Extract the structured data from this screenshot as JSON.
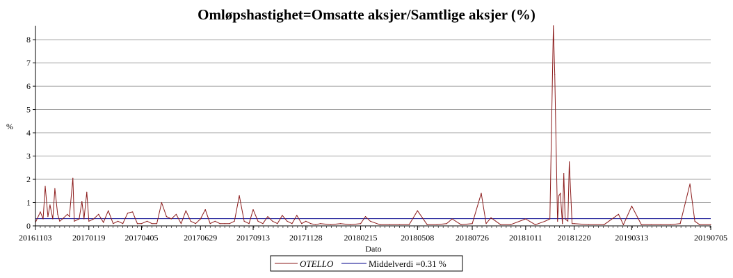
{
  "chart_data": {
    "type": "line",
    "title": "Omløpshastighet=Omsatte aksjer/Samtlige aksjer (%)",
    "xlabel": "Dato",
    "ylabel": "%",
    "x_tick_labels": [
      "20161103",
      "20170119",
      "20170405",
      "20170629",
      "20170913",
      "20171128",
      "20180215",
      "20180508",
      "20180726",
      "20181011",
      "20181220",
      "20190313",
      "20190705"
    ],
    "x_range": [
      "20161103",
      "20190705"
    ],
    "y_ticks": [
      0,
      1,
      2,
      3,
      4,
      5,
      6,
      7,
      8
    ],
    "ylim": [
      0,
      8.6
    ],
    "grid": "horizontal",
    "legend_position": "bottom-center",
    "series": [
      {
        "name": "OTELLO",
        "color": "#8b1a1a",
        "points": [
          [
            "20161103",
            0.15
          ],
          [
            "20161110",
            0.6
          ],
          [
            "20161114",
            0.3
          ],
          [
            "20161117",
            1.7
          ],
          [
            "20161121",
            0.4
          ],
          [
            "20161124",
            0.9
          ],
          [
            "20161128",
            0.3
          ],
          [
            "20161201",
            1.6
          ],
          [
            "20161205",
            0.5
          ],
          [
            "20161208",
            0.2
          ],
          [
            "20161212",
            0.3
          ],
          [
            "20161219",
            0.5
          ],
          [
            "20161222",
            0.4
          ],
          [
            "20161227",
            2.05
          ],
          [
            "20161229",
            0.2
          ],
          [
            "20170105",
            0.3
          ],
          [
            "20170109",
            1.05
          ],
          [
            "20170112",
            0.3
          ],
          [
            "20170116",
            1.45
          ],
          [
            "20170119",
            0.2
          ],
          [
            "20170126",
            0.3
          ],
          [
            "20170202",
            0.5
          ],
          [
            "20170209",
            0.15
          ],
          [
            "20170216",
            0.65
          ],
          [
            "20170223",
            0.1
          ],
          [
            "20170302",
            0.2
          ],
          [
            "20170309",
            0.1
          ],
          [
            "20170316",
            0.55
          ],
          [
            "20170323",
            0.6
          ],
          [
            "20170330",
            0.1
          ],
          [
            "20170405",
            0.1
          ],
          [
            "20170413",
            0.2
          ],
          [
            "20170420",
            0.1
          ],
          [
            "20170427",
            0.1
          ],
          [
            "20170504",
            1.0
          ],
          [
            "20170511",
            0.4
          ],
          [
            "20170518",
            0.3
          ],
          [
            "20170525",
            0.5
          ],
          [
            "20170601",
            0.1
          ],
          [
            "20170608",
            0.65
          ],
          [
            "20170615",
            0.2
          ],
          [
            "20170622",
            0.1
          ],
          [
            "20170629",
            0.3
          ],
          [
            "20170706",
            0.7
          ],
          [
            "20170713",
            0.1
          ],
          [
            "20170720",
            0.2
          ],
          [
            "20170727",
            0.1
          ],
          [
            "20170803",
            0.1
          ],
          [
            "20170810",
            0.1
          ],
          [
            "20170817",
            0.2
          ],
          [
            "20170824",
            1.3
          ],
          [
            "20170831",
            0.2
          ],
          [
            "20170907",
            0.1
          ],
          [
            "20170913",
            0.7
          ],
          [
            "20170920",
            0.2
          ],
          [
            "20170927",
            0.1
          ],
          [
            "20171004",
            0.4
          ],
          [
            "20171011",
            0.2
          ],
          [
            "20171018",
            0.1
          ],
          [
            "20171025",
            0.45
          ],
          [
            "20171101",
            0.2
          ],
          [
            "20171108",
            0.1
          ],
          [
            "20171115",
            0.45
          ],
          [
            "20171122",
            0.1
          ],
          [
            "20171128",
            0.2
          ],
          [
            "20171205",
            0.1
          ],
          [
            "20171212",
            0.05
          ],
          [
            "20171219",
            0.1
          ],
          [
            "20180103",
            0.05
          ],
          [
            "20180117",
            0.1
          ],
          [
            "20180131",
            0.05
          ],
          [
            "20180215",
            0.1
          ],
          [
            "20180222",
            0.4
          ],
          [
            "20180301",
            0.2
          ],
          [
            "20180315",
            0.05
          ],
          [
            "20180329",
            0.05
          ],
          [
            "20180412",
            0.05
          ],
          [
            "20180426",
            0.05
          ],
          [
            "20180508",
            0.65
          ],
          [
            "20180522",
            0.05
          ],
          [
            "20180605",
            0.05
          ],
          [
            "20180619",
            0.1
          ],
          [
            "20180627",
            0.3
          ],
          [
            "20180710",
            0.05
          ],
          [
            "20180726",
            0.1
          ],
          [
            "20180808",
            1.4
          ],
          [
            "20180815",
            0.1
          ],
          [
            "20180822",
            0.35
          ],
          [
            "20180905",
            0.05
          ],
          [
            "20180919",
            0.05
          ],
          [
            "20181011",
            0.3
          ],
          [
            "20181025",
            0.05
          ],
          [
            "20181108",
            0.2
          ],
          [
            "20181115",
            0.3
          ],
          [
            "20181120",
            8.6
          ],
          [
            "20181122",
            6.5
          ],
          [
            "20181126",
            0.2
          ],
          [
            "20181128",
            1.3
          ],
          [
            "20181130",
            1.4
          ],
          [
            "20181203",
            0.1
          ],
          [
            "20181205",
            2.25
          ],
          [
            "20181207",
            0.3
          ],
          [
            "20181211",
            0.2
          ],
          [
            "20181213",
            2.75
          ],
          [
            "20181217",
            0.1
          ],
          [
            "20181220",
            0.1
          ],
          [
            "20190110",
            0.05
          ],
          [
            "20190201",
            0.05
          ],
          [
            "20190222",
            0.5
          ],
          [
            "20190301",
            0.05
          ],
          [
            "20190313",
            0.85
          ],
          [
            "20190327",
            0.05
          ],
          [
            "20190410",
            0.05
          ],
          [
            "20190424",
            0.05
          ],
          [
            "20190508",
            0.05
          ],
          [
            "20190522",
            0.1
          ],
          [
            "20190605",
            1.8
          ],
          [
            "20190612",
            0.2
          ],
          [
            "20190619",
            0.05
          ],
          [
            "20190705",
            0.05
          ]
        ]
      },
      {
        "name": "Middelverdi =0.31 %",
        "color": "#00008b",
        "constant": 0.31
      }
    ]
  }
}
